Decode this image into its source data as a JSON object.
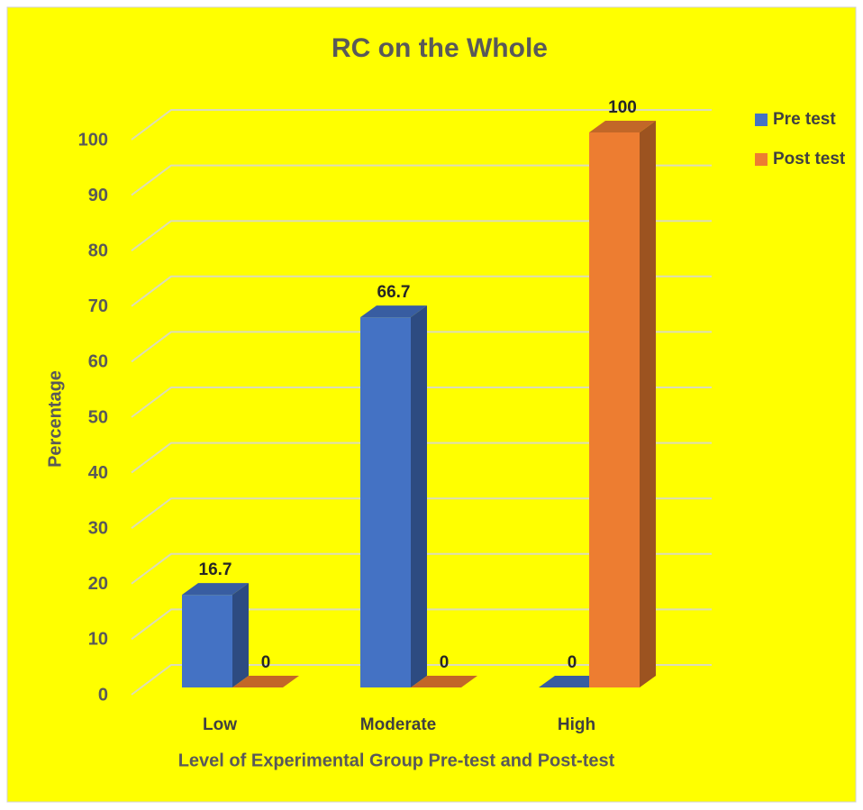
{
  "chart_data": {
    "type": "bar3d",
    "title": "RC on the Whole",
    "x_label": "Level of Experimental Group Pre-test and Post-test",
    "y_label": "Percentage",
    "categories": [
      "Low",
      "Moderate",
      "High"
    ],
    "series": [
      {
        "name": "Pre test",
        "color": "#4472c4",
        "values": [
          16.7,
          66.7,
          0
        ]
      },
      {
        "name": "Post test",
        "color": "#ed7d31",
        "values": [
          0,
          0,
          100
        ]
      }
    ],
    "ylim": [
      0,
      100
    ],
    "yticks": [
      0,
      10,
      20,
      30,
      40,
      50,
      60,
      70,
      80,
      90,
      100
    ],
    "grid": true,
    "legend": "right"
  }
}
